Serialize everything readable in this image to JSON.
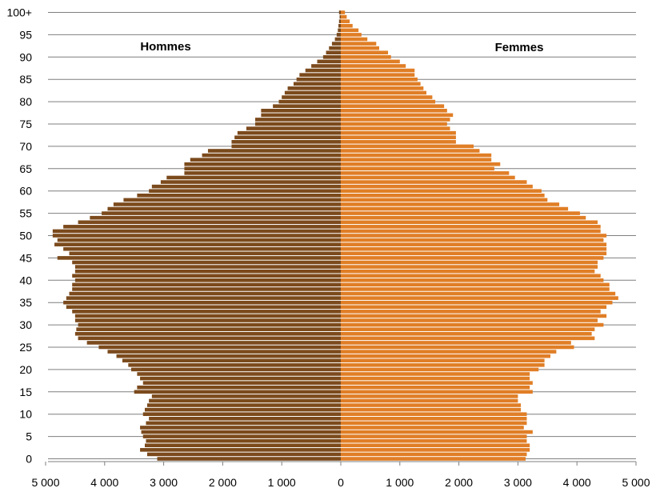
{
  "chart_data": {
    "type": "bar",
    "orientation": "horizontal",
    "layout": "population-pyramid",
    "title": "",
    "xlabel": "",
    "ylabel": "",
    "xlim": [
      -5000,
      5000
    ],
    "x_tick_values": [
      -5000,
      -4000,
      -3000,
      -2000,
      -1000,
      0,
      1000,
      2000,
      3000,
      4000,
      5000
    ],
    "x_tick_labels": [
      "5 000",
      "4 000",
      "3 000",
      "2 000",
      "1 000",
      "0",
      "1 000",
      "2 000",
      "3 000",
      "4 000",
      "5 000"
    ],
    "y_tick_ages": [
      0,
      5,
      10,
      15,
      20,
      25,
      30,
      35,
      40,
      45,
      50,
      55,
      60,
      65,
      70,
      75,
      80,
      85,
      90,
      95,
      100
    ],
    "y_tick_labels": [
      "0",
      "5",
      "10",
      "15",
      "20",
      "25",
      "30",
      "35",
      "40",
      "45",
      "50",
      "55",
      "60",
      "65",
      "70",
      "75",
      "80",
      "85",
      "90",
      "95",
      "100+"
    ],
    "grid": true,
    "series": [
      {
        "name": "Hommes",
        "color": "#7b4a1c",
        "values": [
          3110,
          3280,
          3400,
          3320,
          3300,
          3350,
          3380,
          3400,
          3300,
          3250,
          3350,
          3320,
          3280,
          3250,
          3200,
          3500,
          3450,
          3350,
          3400,
          3450,
          3550,
          3600,
          3700,
          3800,
          3950,
          4100,
          4300,
          4450,
          4500,
          4480,
          4450,
          4500,
          4500,
          4550,
          4650,
          4700,
          4650,
          4600,
          4550,
          4550,
          4500,
          4550,
          4500,
          4500,
          4550,
          4800,
          4600,
          4700,
          4850,
          4800,
          4880,
          4880,
          4700,
          4450,
          4250,
          4050,
          3950,
          3850,
          3680,
          3450,
          3250,
          3200,
          3050,
          2950,
          2650,
          2650,
          2650,
          2550,
          2350,
          2250,
          1850,
          1850,
          1800,
          1750,
          1600,
          1450,
          1450,
          1350,
          1350,
          1150,
          1050,
          1000,
          950,
          900,
          800,
          750,
          700,
          600,
          500,
          400,
          300,
          250,
          200,
          150,
          100,
          70,
          50,
          40,
          30,
          20,
          30
        ]
      },
      {
        "name": "Femmes",
        "color": "#e07e26",
        "values": [
          3130,
          3150,
          3200,
          3200,
          3150,
          3150,
          3250,
          3100,
          3150,
          3150,
          3150,
          3050,
          3050,
          3000,
          3000,
          3250,
          3200,
          3250,
          3200,
          3200,
          3350,
          3450,
          3450,
          3550,
          3650,
          3950,
          3900,
          4300,
          4250,
          4300,
          4450,
          4350,
          4500,
          4400,
          4500,
          4600,
          4700,
          4650,
          4550,
          4550,
          4450,
          4400,
          4300,
          4350,
          4350,
          4450,
          4500,
          4500,
          4500,
          4450,
          4500,
          4400,
          4400,
          4350,
          4150,
          4050,
          3850,
          3700,
          3500,
          3450,
          3400,
          3250,
          3150,
          2950,
          2850,
          2600,
          2700,
          2550,
          2550,
          2350,
          2250,
          1950,
          1950,
          1950,
          1850,
          1800,
          1850,
          1900,
          1800,
          1750,
          1600,
          1550,
          1450,
          1400,
          1350,
          1300,
          1250,
          1250,
          1100,
          1000,
          850,
          800,
          650,
          600,
          450,
          350,
          300,
          200,
          150,
          100,
          70
        ]
      }
    ]
  }
}
